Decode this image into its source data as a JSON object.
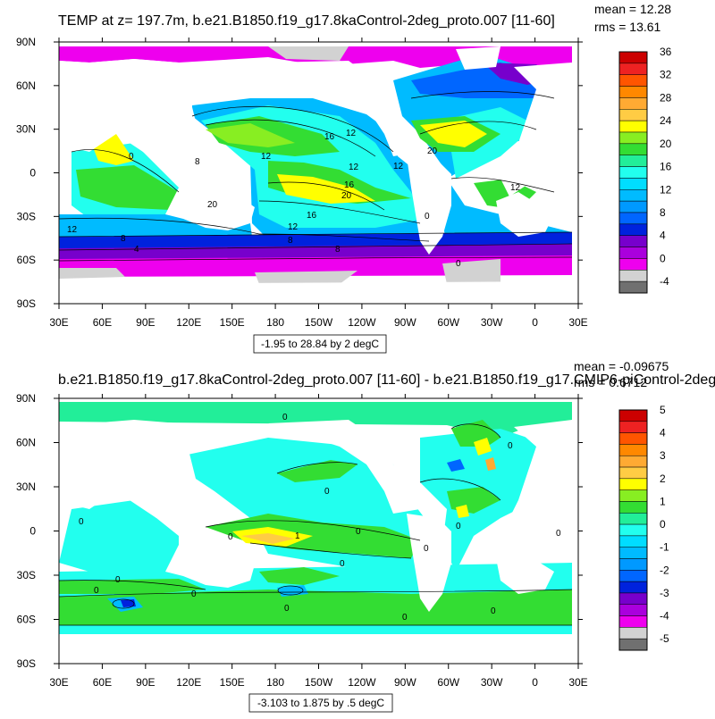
{
  "chart_data": [
    {
      "type": "heatmap",
      "title": "TEMP at z= 197.7m, b.e21.B1850.f19_g17.8kaControl-2deg_proto.007 [11-60]",
      "stats": {
        "mean": "mean = 12.28",
        "rms": "rms = 13.61"
      },
      "info": "-1.95 to 28.84 by 2 degC",
      "x_ticks": [
        "30E",
        "60E",
        "90E",
        "120E",
        "150E",
        "180",
        "150W",
        "120W",
        "90W",
        "60W",
        "30W",
        "0",
        "30E"
      ],
      "y_ticks": [
        "90N",
        "60N",
        "30N",
        "0",
        "30S",
        "60S",
        "90S"
      ],
      "colorbar": {
        "labels": [
          "36",
          "32",
          "28",
          "24",
          "20",
          "16",
          "12",
          "8",
          "4",
          "0",
          "-4"
        ],
        "colors": [
          "#cc0000",
          "#ee2222",
          "#ff5500",
          "#ff8800",
          "#ffaa33",
          "#ffcc44",
          "#ffff00",
          "#88ee22",
          "#33dd33",
          "#22ee99",
          "#22ffee",
          "#00ddff",
          "#00bbff",
          "#0099ff",
          "#0066ff",
          "#0022dd",
          "#7700cc",
          "#aa00dd",
          "#ee00ee",
          "#d2d2d2",
          "#707070"
        ]
      },
      "contour_labels": [
        "16",
        "12",
        "12",
        "20",
        "12",
        "8",
        "12",
        "16",
        "20",
        "12",
        "16",
        "12",
        "8",
        "20",
        "12",
        "8",
        "8",
        "4",
        "0",
        "0",
        "0"
      ]
    },
    {
      "type": "heatmap",
      "title": "b.e21.B1850.f19_g17.8kaControl-2deg_proto.007 [11-60] - b.e21.B1850.f19_g17.CMIP6-piControl-2deg",
      "stats": {
        "mean": "mean = -0.09675",
        "rms": "rms = 0.6712"
      },
      "info": "-3.103 to 1.875 by .5 degC",
      "x_ticks": [
        "30E",
        "60E",
        "90E",
        "120E",
        "150E",
        "180",
        "150W",
        "120W",
        "90W",
        "60W",
        "30W",
        "0",
        "30E"
      ],
      "y_ticks": [
        "90N",
        "60N",
        "30N",
        "0",
        "30S",
        "60S",
        "90S"
      ],
      "colorbar": {
        "labels": [
          "5",
          "4",
          "3",
          "2",
          "1",
          "0",
          "-1",
          "-2",
          "-3",
          "-4",
          "-5"
        ],
        "colors": [
          "#cc0000",
          "#ee2222",
          "#ff5500",
          "#ff8800",
          "#ffaa33",
          "#ffcc44",
          "#ffff00",
          "#88ee22",
          "#33dd33",
          "#22ee99",
          "#22ffee",
          "#00ddff",
          "#00bbff",
          "#0099ff",
          "#0066ff",
          "#0022dd",
          "#7700cc",
          "#aa00dd",
          "#ee00ee",
          "#d2d2d2",
          "#707070"
        ]
      },
      "contour_labels": [
        "0",
        "0",
        "0",
        "0",
        "0",
        "0",
        "1",
        "0",
        "0",
        "0",
        "0",
        "0",
        "0",
        "0",
        "0",
        "0",
        "0"
      ]
    }
  ],
  "colors": {
    "land": "#ffffff",
    "frame": "#000000"
  }
}
